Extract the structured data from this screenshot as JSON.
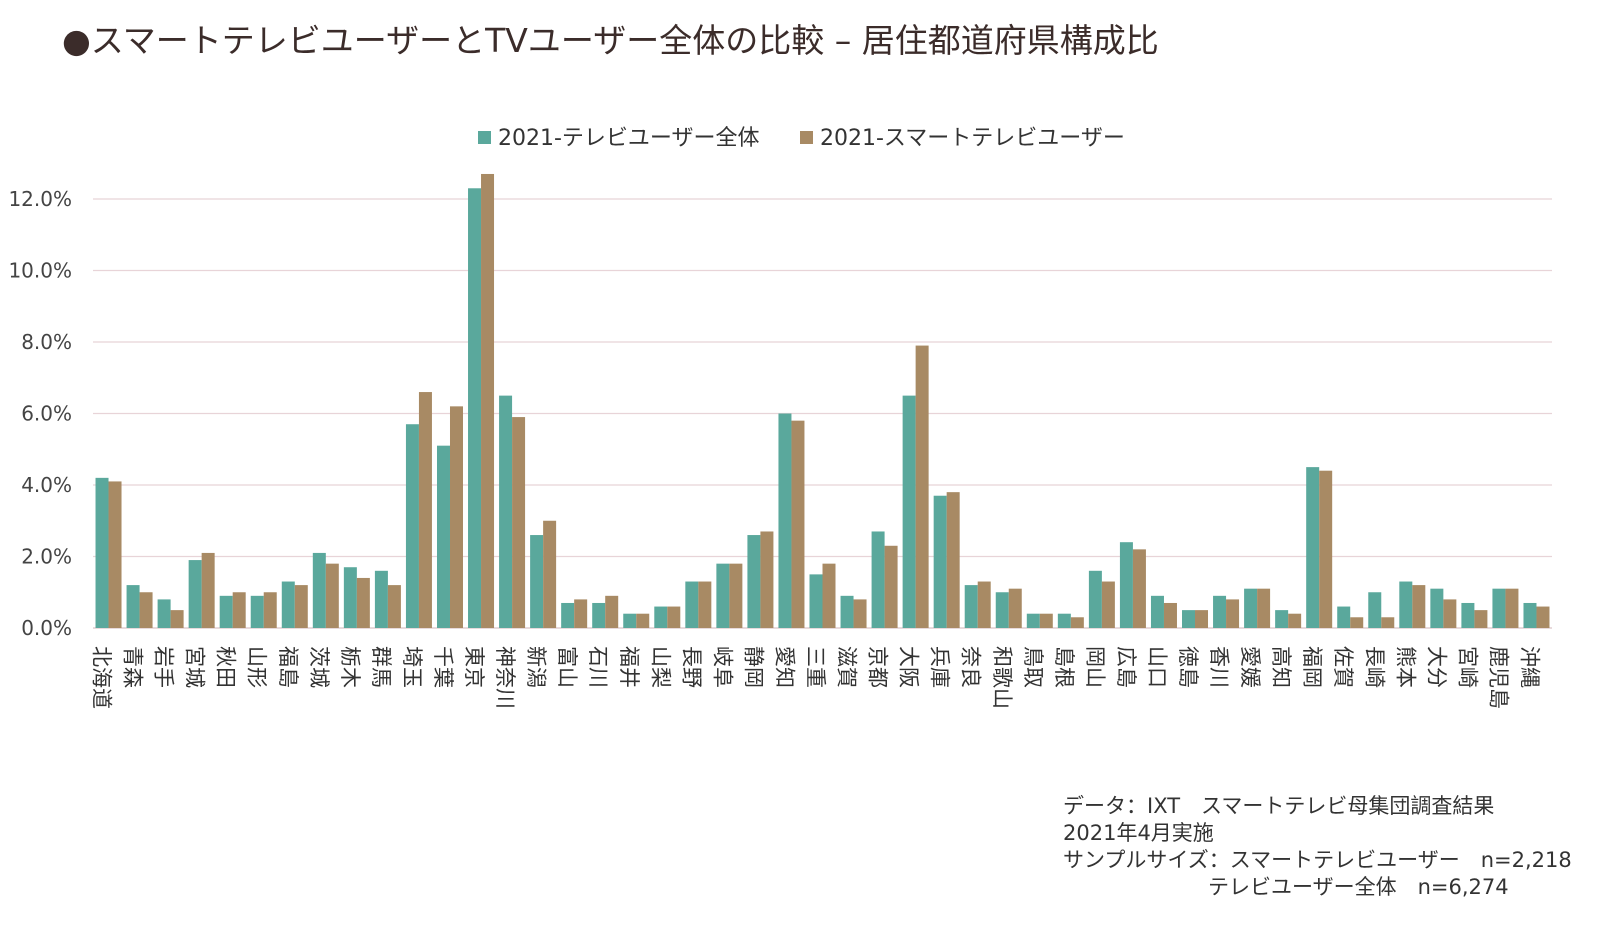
{
  "title": "●スマートテレビユーザーとTVユーザー全体の比較 – 居住都道府県構成比",
  "colors": {
    "series1": "#5aa89c",
    "series2": "#a88a64",
    "grid": "#e8d4d8"
  },
  "chart_data": {
    "type": "bar",
    "categories": [
      "北海道",
      "青森",
      "岩手",
      "宮城",
      "秋田",
      "山形",
      "福島",
      "茨城",
      "栃木",
      "群馬",
      "埼玉",
      "千葉",
      "東京",
      "神奈川",
      "新潟",
      "富山",
      "石川",
      "福井",
      "山梨",
      "長野",
      "岐阜",
      "静岡",
      "愛知",
      "三重",
      "滋賀",
      "京都",
      "大阪",
      "兵庫",
      "奈良",
      "和歌山",
      "鳥取",
      "島根",
      "岡山",
      "広島",
      "山口",
      "徳島",
      "香川",
      "愛媛",
      "高知",
      "福岡",
      "佐賀",
      "長崎",
      "熊本",
      "大分",
      "宮崎",
      "鹿児島",
      "沖縄"
    ],
    "series": [
      {
        "name": "2021-テレビユーザー全体",
        "values": [
          4.2,
          1.2,
          0.8,
          1.9,
          0.9,
          0.9,
          1.3,
          2.1,
          1.7,
          1.6,
          5.7,
          5.1,
          12.3,
          6.5,
          2.6,
          0.7,
          0.7,
          0.4,
          0.6,
          1.3,
          1.8,
          2.6,
          6.0,
          1.5,
          0.9,
          2.7,
          6.5,
          3.7,
          1.2,
          1.0,
          0.4,
          0.4,
          1.6,
          2.4,
          0.9,
          0.5,
          0.9,
          1.1,
          0.5,
          4.5,
          0.6,
          1.0,
          1.3,
          1.1,
          0.7,
          1.1,
          0.7
        ]
      },
      {
        "name": "2021-スマートテレビユーザー",
        "values": [
          4.1,
          1.0,
          0.5,
          2.1,
          1.0,
          1.0,
          1.2,
          1.8,
          1.4,
          1.2,
          6.6,
          6.2,
          12.7,
          5.9,
          3.0,
          0.8,
          0.9,
          0.4,
          0.6,
          1.3,
          1.8,
          2.7,
          5.8,
          1.8,
          0.8,
          2.3,
          7.9,
          3.8,
          1.3,
          1.1,
          0.4,
          0.3,
          1.3,
          2.2,
          0.7,
          0.5,
          0.8,
          1.1,
          0.4,
          4.4,
          0.3,
          0.3,
          1.2,
          0.8,
          0.5,
          1.1,
          0.6
        ]
      }
    ],
    "yticks": [
      "0.0%",
      "2.0%",
      "4.0%",
      "6.0%",
      "8.0%",
      "10.0%",
      "12.0%"
    ],
    "ylim": [
      0,
      12.0
    ],
    "grid": true,
    "legend_position": "top"
  },
  "notes": {
    "line1": "データ：IXT　スマートテレビ母集団調査結果",
    "line2": "2021年4月実施",
    "line3": "サンプルサイズ：スマートテレビユーザー　n=2,218",
    "line4": "テレビユーザー全体　n=6,274"
  }
}
